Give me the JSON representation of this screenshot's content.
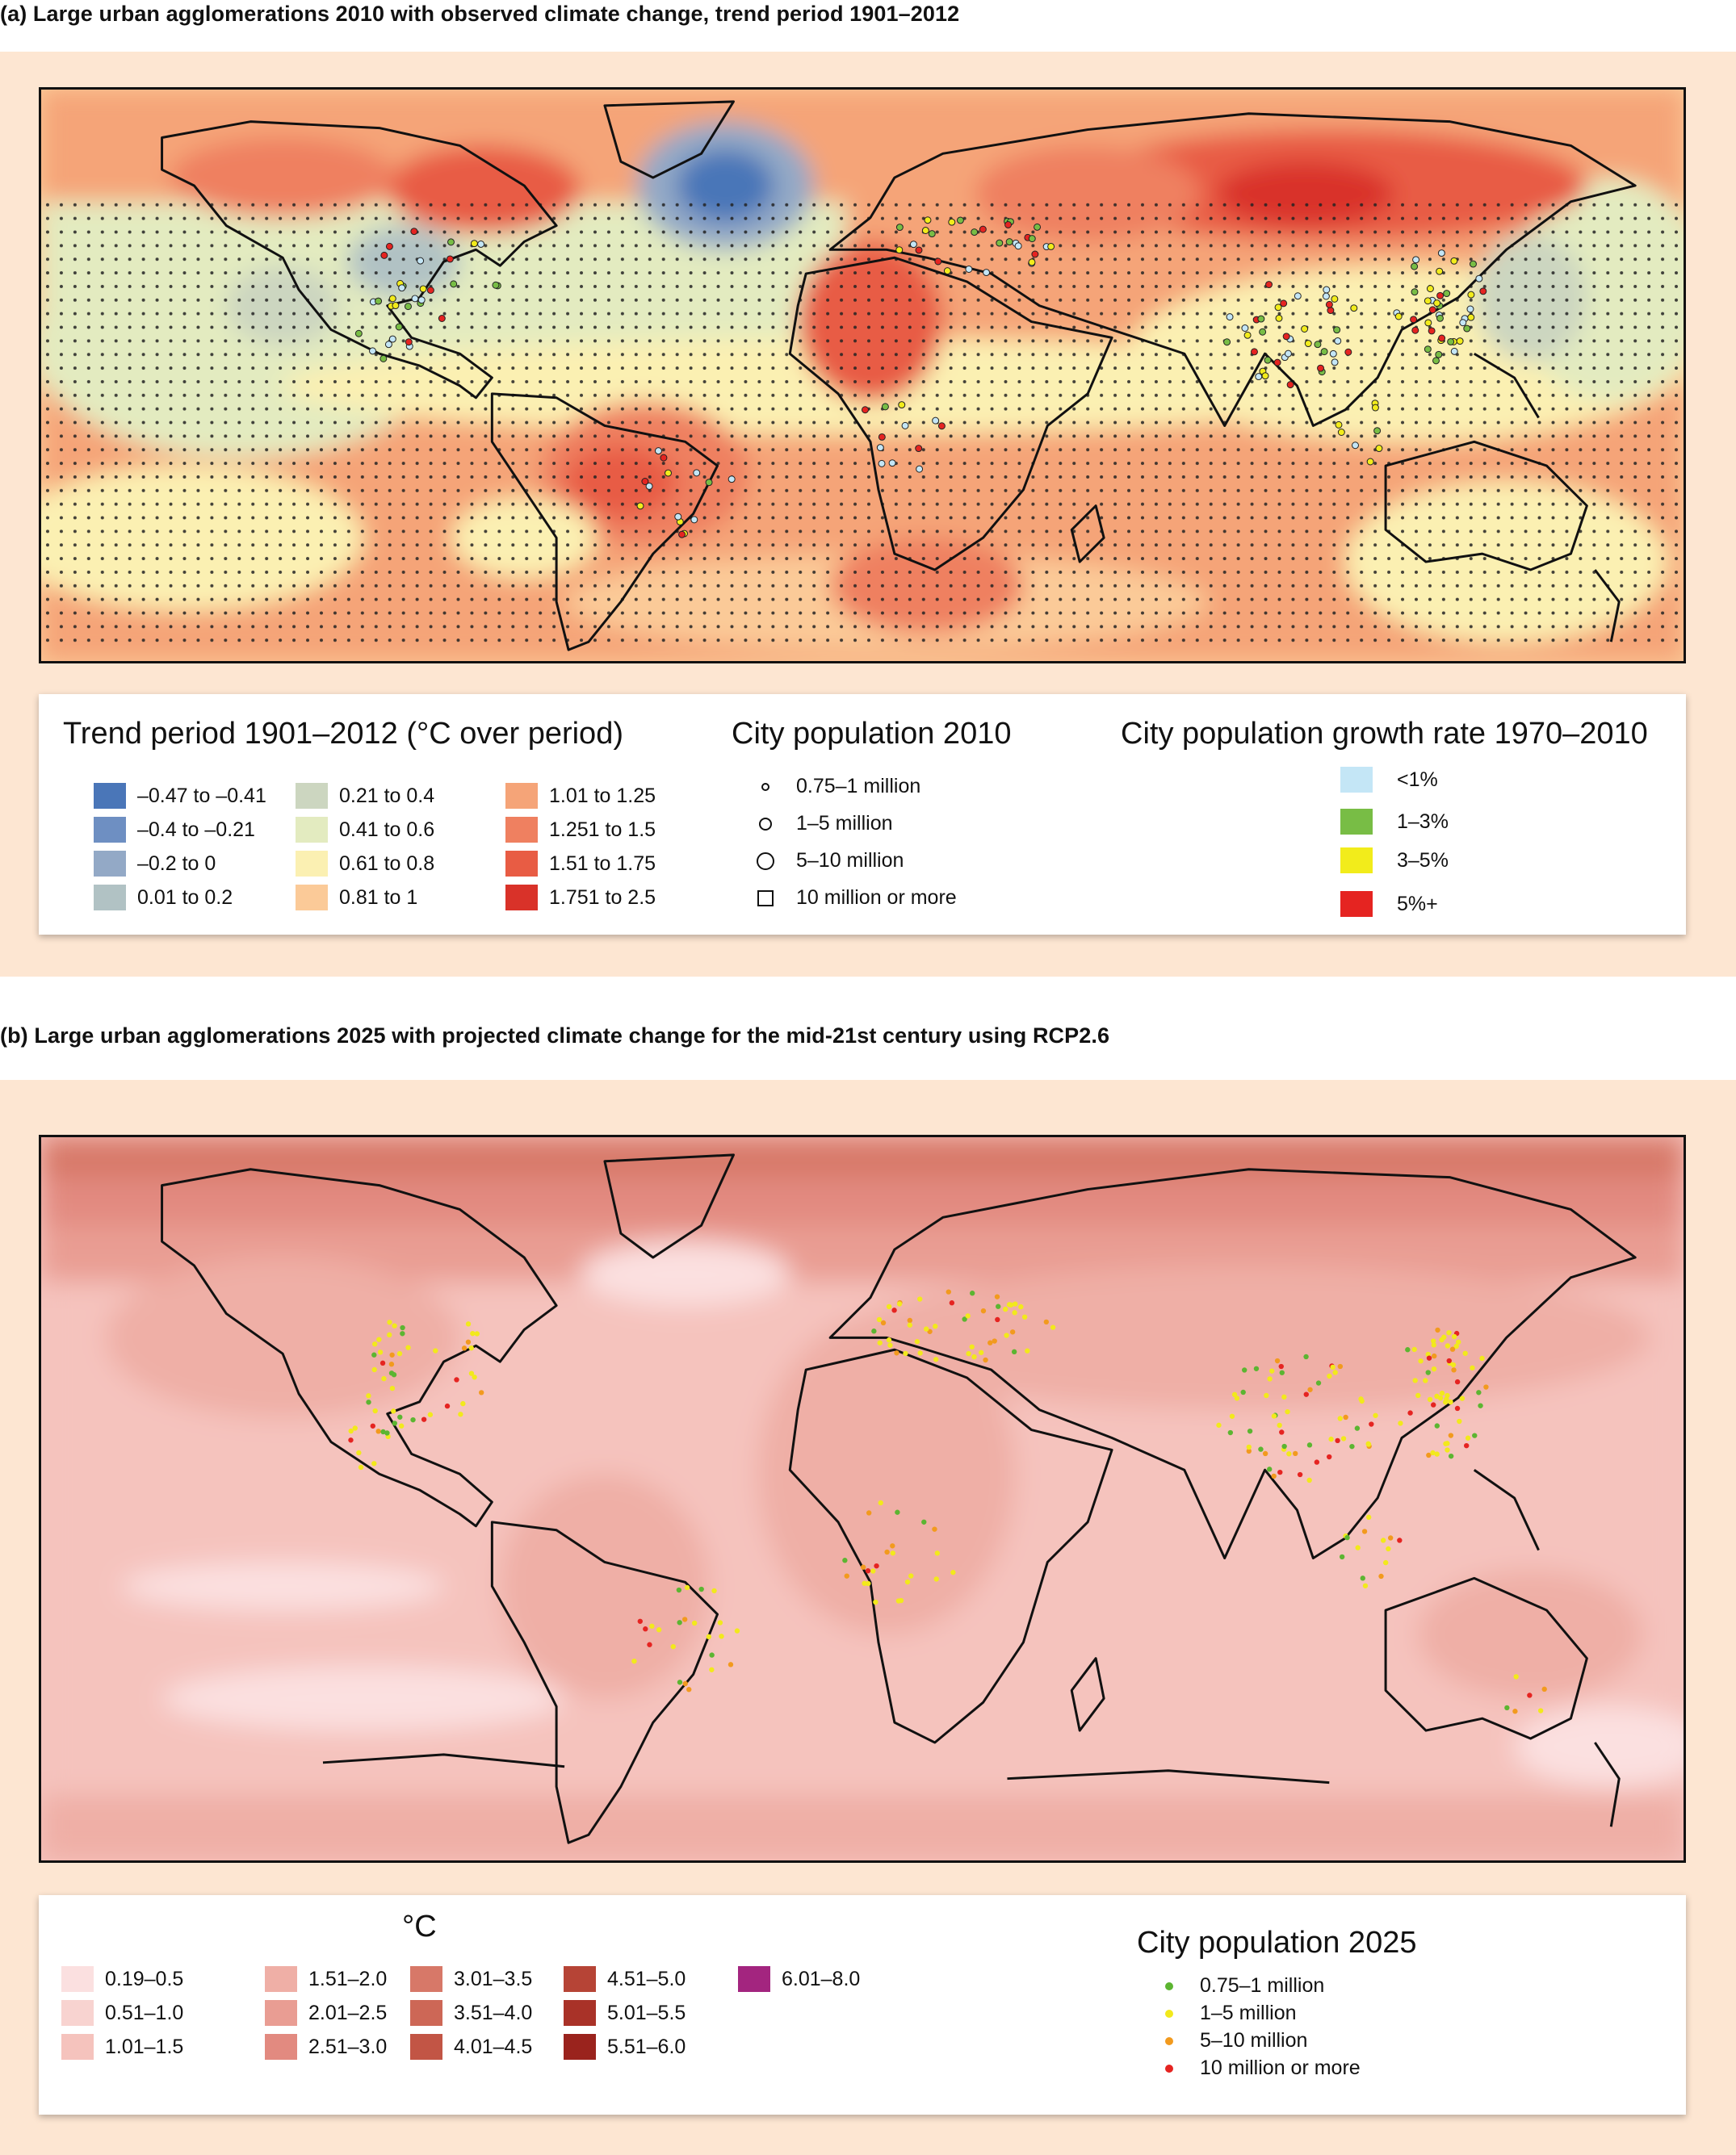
{
  "panel_a": {
    "title": "(a) Large urban agglomerations 2010 with observed climate change, trend period 1901–2012",
    "legend_trend": {
      "heading": "Trend period 1901–2012 (°C over period)",
      "bins": [
        {
          "label": "–0.47 to –0.41",
          "color": "#4a76b8"
        },
        {
          "label": "–0.4 to –0.21",
          "color": "#6e8fc2"
        },
        {
          "label": "–0.2 to 0",
          "color": "#93a9c6"
        },
        {
          "label": "0.01 to 0.2",
          "color": "#b1c2c4"
        },
        {
          "label": "0.21 to 0.4",
          "color": "#ccd6c0"
        },
        {
          "label": "0.41 to 0.6",
          "color": "#e3ebc0"
        },
        {
          "label": "0.61 to 0.8",
          "color": "#fbf0b2"
        },
        {
          "label": "0.81 to 1",
          "color": "#fbca98"
        },
        {
          "label": "1.01 to 1.25",
          "color": "#f5a478"
        },
        {
          "label": "1.251 to 1.5",
          "color": "#ef8060"
        },
        {
          "label": "1.51 to 1.75",
          "color": "#e85c44"
        },
        {
          "label": "1.751 to 2.5",
          "color": "#d93229"
        }
      ]
    },
    "legend_population": {
      "heading": "City population 2010",
      "items": [
        {
          "label": "0.75–1 million",
          "marker": "small-circle"
        },
        {
          "label": "1–5 million",
          "marker": "medium-circle"
        },
        {
          "label": "5–10 million",
          "marker": "large-circle"
        },
        {
          "label": "10 million or more",
          "marker": "square"
        }
      ]
    },
    "legend_growth": {
      "heading": "City population growth rate 1970–2010",
      "items": [
        {
          "label": "<1%",
          "color": "#c4e6f6"
        },
        {
          "label": "1–3%",
          "color": "#78bd45"
        },
        {
          "label": "3–5%",
          "color": "#f2ec1b"
        },
        {
          "label": "5%+",
          "color": "#e52421"
        }
      ]
    }
  },
  "panel_b": {
    "title": "(b) Large urban agglomerations 2025 with projected climate change for the mid-21st century using RCP2.6",
    "legend_temp": {
      "heading": "°C",
      "bins": [
        {
          "label": "0.19–0.5",
          "color": "#fbe0e0"
        },
        {
          "label": "0.51–1.0",
          "color": "#f8d3d0"
        },
        {
          "label": "1.01–1.5",
          "color": "#f5c3bd"
        },
        {
          "label": "1.51–2.0",
          "color": "#efafa6"
        },
        {
          "label": "2.01–2.5",
          "color": "#e99d93"
        },
        {
          "label": "2.51–3.0",
          "color": "#e28a80"
        },
        {
          "label": "3.01–3.5",
          "color": "#d77868"
        },
        {
          "label": "3.51–4.0",
          "color": "#cd6756"
        },
        {
          "label": "4.01–4.5",
          "color": "#c25545"
        },
        {
          "label": "4.51–5.0",
          "color": "#b64436"
        },
        {
          "label": "5.01–5.5",
          "color": "#a93228"
        },
        {
          "label": "5.51–6.0",
          "color": "#9a231d"
        },
        {
          "label": "6.01–8.0",
          "color": "#a3257f"
        }
      ]
    },
    "legend_population": {
      "heading": "City population 2025",
      "items": [
        {
          "label": "0.75–1 million",
          "color": "#5cb531"
        },
        {
          "label": "1–5 million",
          "color": "#f2e91c"
        },
        {
          "label": "5–10 million",
          "color": "#f29a1e"
        },
        {
          "label": "10 million or more",
          "color": "#e52421"
        }
      ]
    }
  }
}
